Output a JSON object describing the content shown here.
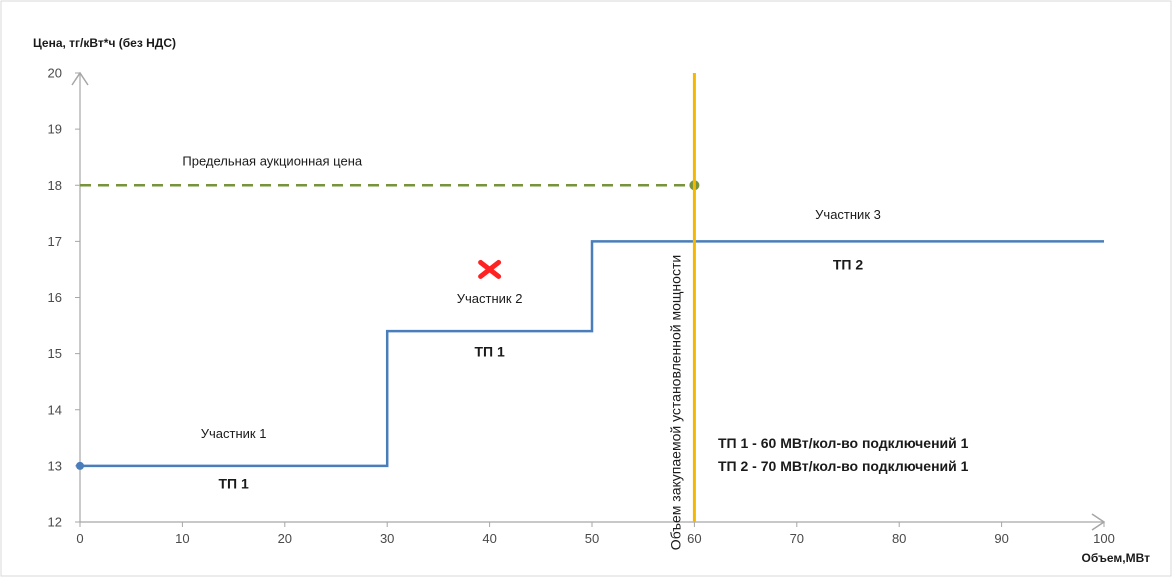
{
  "chart_data": {
    "type": "line",
    "ylabel": "Цена, тг/кВт*ч (без НДС)",
    "xlabel": "Объем,МВт",
    "xlim": [
      0,
      100
    ],
    "ylim": [
      12,
      20
    ],
    "x_ticks": [
      0,
      10,
      20,
      30,
      40,
      50,
      60,
      70,
      80,
      90,
      100
    ],
    "y_ticks": [
      12,
      13,
      14,
      15,
      16,
      17,
      18,
      19,
      20
    ],
    "grid": false,
    "series": [
      {
        "style": "step",
        "color": "#4a7ebb",
        "points": [
          [
            0,
            13
          ],
          [
            30,
            13
          ],
          [
            30,
            15.4
          ],
          [
            50,
            15.4
          ],
          [
            50,
            17
          ],
          [
            100,
            17
          ]
        ]
      }
    ],
    "price_cap": {
      "y": 18,
      "x_end": 60,
      "color": "#77933c",
      "label": "Предельная аукционная цена"
    },
    "volume_line": {
      "x": 60,
      "color": "#f5b800",
      "label": "Объем закупаемой установленной мощности"
    },
    "marker": {
      "x": 40,
      "y": 16.5,
      "color": "#ff2222",
      "symbol": "x"
    },
    "start_dot": {
      "x": 0,
      "y": 13
    },
    "segment_labels": [
      {
        "name": "Участник 1",
        "tp": "ТП 1",
        "x_center": 15,
        "name_y": 13.5,
        "tp_y": 12.6
      },
      {
        "name": "Участник 2",
        "tp": "ТП 1",
        "x_center": 40,
        "name_y": 15.9,
        "tp_y": 14.95
      },
      {
        "name": "Участник 3",
        "tp": "ТП 2",
        "x_center": 75,
        "name_y": 17.4,
        "tp_y": 16.5
      }
    ],
    "notes": [
      "ТП 1 - 60 МВт/кол-во подключений 1",
      "ТП 2 - 70 МВт/кол-во подключений 1"
    ]
  }
}
